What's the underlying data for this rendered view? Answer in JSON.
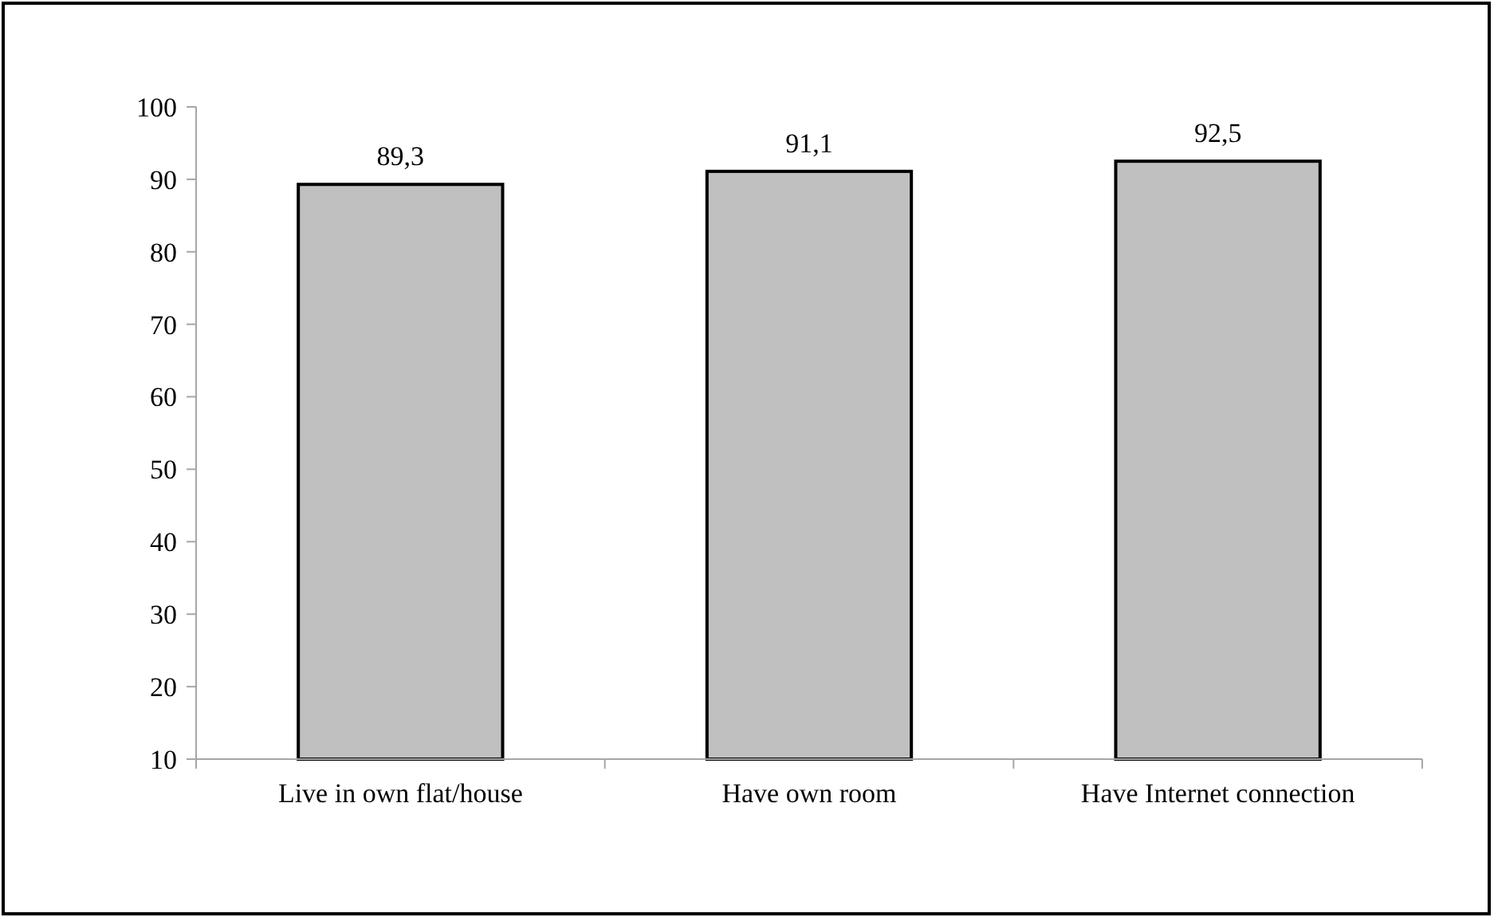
{
  "chart_data": {
    "type": "bar",
    "categories": [
      "Live in own flat/house",
      "Have own room",
      "Have Internet connection"
    ],
    "values": [
      89.3,
      91.1,
      92.5
    ],
    "color": "#c0c0c0",
    "value_labels": [
      "89,3",
      "91,1",
      "92,5"
    ],
    "ylim": [
      10,
      100
    ],
    "yticks": [
      10,
      20,
      30,
      40,
      50,
      60,
      70,
      80,
      90,
      100
    ]
  }
}
